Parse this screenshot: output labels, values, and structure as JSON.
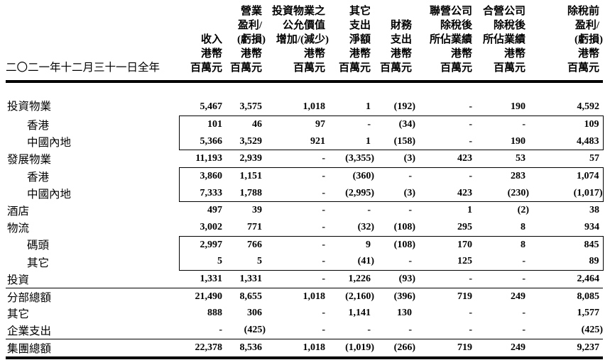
{
  "table": {
    "period_label": "二〇二一年十二月三十一日全年",
    "unit_label": "港幣 百萬元",
    "columns": [
      {
        "name": "revenue",
        "lines": [
          "收入",
          "港幣",
          "百萬元"
        ]
      },
      {
        "name": "operating-profit-loss",
        "lines": [
          "營業",
          "盈利/",
          "(虧損)",
          "港幣",
          "百萬元"
        ]
      },
      {
        "name": "fair-value-change",
        "lines": [
          "投資物業之",
          "公允價值",
          "增加/(減少)",
          "港幣",
          "百萬元"
        ]
      },
      {
        "name": "other-net-charge",
        "lines": [
          "其它",
          "支出",
          "淨額",
          "港幣",
          "百萬元"
        ]
      },
      {
        "name": "finance-costs",
        "lines": [
          "財務",
          "支出",
          "港幣",
          "百萬元"
        ]
      },
      {
        "name": "share-associates",
        "lines": [
          "聯營公司",
          "除稅後",
          "所佔業績",
          "港幣",
          "百萬元"
        ]
      },
      {
        "name": "share-joint-ventures",
        "lines": [
          "合營公司",
          "除稅後",
          "所佔業績",
          "港幣",
          "百萬元"
        ]
      },
      {
        "name": "profit-before-tax",
        "lines": [
          "除稅前",
          "盈利/",
          "(虧損)",
          "港幣",
          "百萬元"
        ]
      }
    ],
    "rows": [
      {
        "label": "投資物業",
        "indent": 0,
        "box": null,
        "rule_above": null,
        "rule_below": null,
        "values": [
          "5,467",
          "3,575",
          "1,018",
          "1",
          "(192)",
          "-",
          "190",
          "4,592"
        ]
      },
      {
        "label": "香港",
        "indent": 1,
        "box": "top",
        "rule_above": null,
        "rule_below": null,
        "values": [
          "101",
          "46",
          "97",
          "-",
          "(34)",
          "-",
          "-",
          "109"
        ]
      },
      {
        "label": "中國內地",
        "indent": 1,
        "box": "bottom",
        "rule_above": null,
        "rule_below": null,
        "values": [
          "5,366",
          "3,529",
          "921",
          "1",
          "(158)",
          "-",
          "190",
          "4,483"
        ]
      },
      {
        "label": "發展物業",
        "indent": 0,
        "box": null,
        "rule_above": null,
        "rule_below": null,
        "values": [
          "11,193",
          "2,939",
          "-",
          "(3,355)",
          "(3)",
          "423",
          "53",
          "57"
        ]
      },
      {
        "label": "香港",
        "indent": 1,
        "box": "top",
        "rule_above": null,
        "rule_below": null,
        "values": [
          "3,860",
          "1,151",
          "-",
          "(360)",
          "-",
          "-",
          "283",
          "1,074"
        ]
      },
      {
        "label": "中國內地",
        "indent": 1,
        "box": "bottom",
        "rule_above": null,
        "rule_below": null,
        "values": [
          "7,333",
          "1,788",
          "-",
          "(2,995)",
          "(3)",
          "423",
          "(230)",
          "(1,017)"
        ]
      },
      {
        "label": "酒店",
        "indent": 0,
        "box": null,
        "rule_above": null,
        "rule_below": null,
        "values": [
          "497",
          "39",
          "-",
          "-",
          "-",
          "1",
          "(2)",
          "38"
        ]
      },
      {
        "label": "物流",
        "indent": 0,
        "box": null,
        "rule_above": null,
        "rule_below": null,
        "values": [
          "3,002",
          "771",
          "-",
          "(32)",
          "(108)",
          "295",
          "8",
          "934"
        ]
      },
      {
        "label": "碼頭",
        "indent": 1,
        "box": "top",
        "rule_above": null,
        "rule_below": null,
        "values": [
          "2,997",
          "766",
          "-",
          "9",
          "(108)",
          "170",
          "8",
          "845"
        ]
      },
      {
        "label": "其它",
        "indent": 1,
        "box": "bottom",
        "rule_above": null,
        "rule_below": null,
        "values": [
          "5",
          "5",
          "-",
          "(41)",
          "-",
          "125",
          "-",
          "89"
        ]
      },
      {
        "label": "投資",
        "indent": 0,
        "box": null,
        "rule_above": null,
        "rule_below": null,
        "values": [
          "1,331",
          "1,331",
          "-",
          "1,226",
          "(93)",
          "-",
          "-",
          "2,464"
        ]
      },
      {
        "label": "分部總額",
        "indent": 0,
        "box": null,
        "rule_above": "thin",
        "rule_below": null,
        "values": [
          "21,490",
          "8,655",
          "1,018",
          "(2,160)",
          "(396)",
          "719",
          "249",
          "8,085"
        ]
      },
      {
        "label": "其它",
        "indent": 0,
        "box": null,
        "rule_above": null,
        "rule_below": null,
        "values": [
          "888",
          "306",
          "-",
          "1,141",
          "130",
          "-",
          "-",
          "1,577"
        ]
      },
      {
        "label": "企業支出",
        "indent": 0,
        "box": null,
        "rule_above": null,
        "rule_below": null,
        "values": [
          "-",
          "(425)",
          "-",
          "-",
          "-",
          "-",
          "-",
          "(425)"
        ]
      },
      {
        "label": "集團總額",
        "indent": 0,
        "box": null,
        "rule_above": "thin",
        "rule_below": "thick",
        "values": [
          "22,378",
          "8,536",
          "1,018",
          "(1,019)",
          "(266)",
          "719",
          "249",
          "9,237"
        ]
      }
    ]
  }
}
